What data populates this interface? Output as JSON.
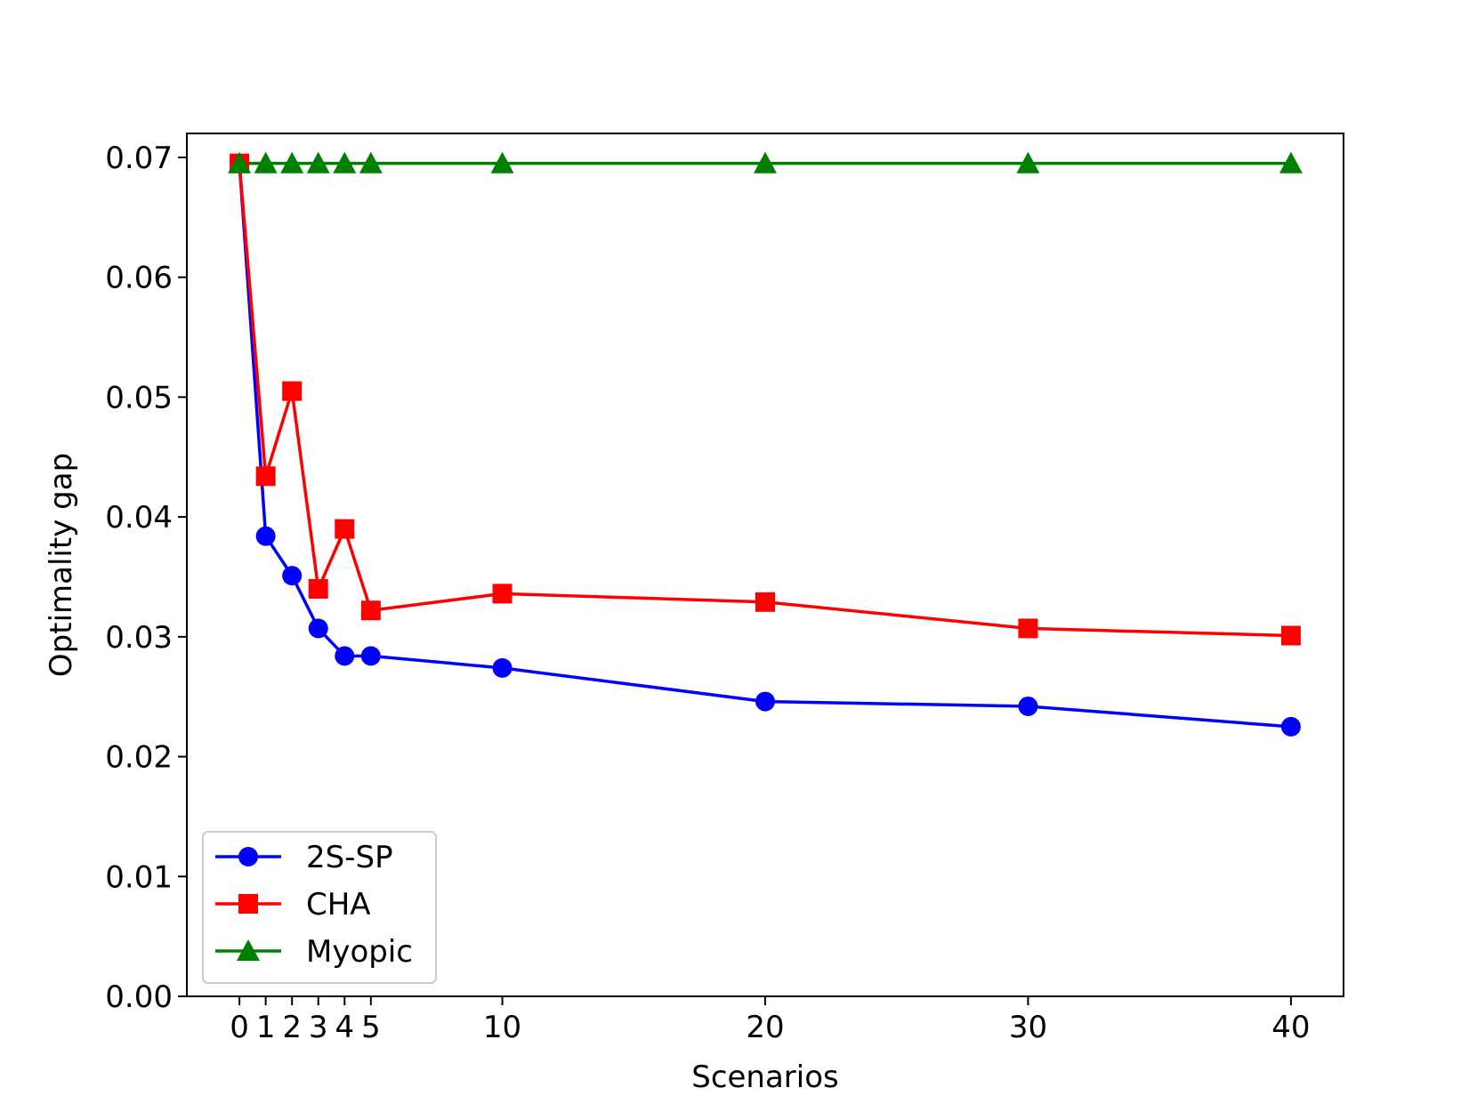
{
  "chart_data": {
    "type": "line",
    "title": "",
    "xlabel": "Scenarios",
    "ylabel": "Optimality gap",
    "x": [
      0,
      1,
      2,
      3,
      4,
      5,
      10,
      20,
      30,
      40
    ],
    "xlim": [
      -2,
      42
    ],
    "ylim": [
      0,
      0.072
    ],
    "xticks": [
      0,
      1,
      2,
      3,
      4,
      5,
      10,
      20,
      30,
      40
    ],
    "xtick_labels": [
      "0",
      "1",
      "2",
      "3",
      "4",
      "5",
      "10",
      "20",
      "30",
      "40"
    ],
    "yticks": [
      0,
      0.01,
      0.02,
      0.03,
      0.04,
      0.05,
      0.06,
      0.07
    ],
    "ytick_labels": [
      "0.00",
      "0.01",
      "0.02",
      "0.03",
      "0.04",
      "0.05",
      "0.06",
      "0.07"
    ],
    "grid": false,
    "legend_position": "lower-left",
    "series": [
      {
        "name": "2S-SP",
        "color": "#0000ff",
        "marker": "circle",
        "values": [
          0.0695,
          0.0384,
          0.0351,
          0.0307,
          0.0284,
          0.0284,
          0.0274,
          0.0246,
          0.0242,
          0.0225
        ]
      },
      {
        "name": "CHA",
        "color": "#ff0000",
        "marker": "square",
        "values": [
          0.0695,
          0.0434,
          0.0505,
          0.034,
          0.039,
          0.0322,
          0.0336,
          0.0329,
          0.0307,
          0.0301
        ]
      },
      {
        "name": "Myopic",
        "color": "#008000",
        "marker": "triangle",
        "values": [
          0.0695,
          0.0695,
          0.0695,
          0.0695,
          0.0695,
          0.0695,
          0.0695,
          0.0695,
          0.0695,
          0.0695
        ]
      }
    ]
  }
}
